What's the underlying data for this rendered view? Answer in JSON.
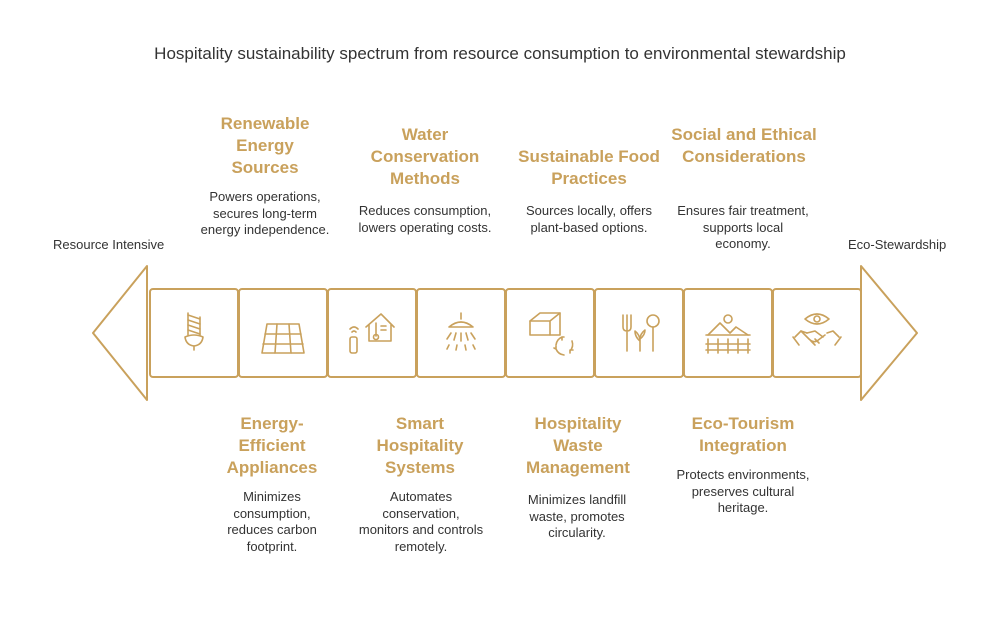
{
  "title": "Hospitality sustainability spectrum from resource consumption to environmental stewardship",
  "ends": {
    "left": "Resource Intensive",
    "right": "Eco-Stewardship"
  },
  "accent_color": "#C9A15C",
  "top_items": [
    {
      "heading": "Renewable Energy Sources",
      "description": "Powers operations, secures long-term energy independence.",
      "icon": "solar-panel-icon"
    },
    {
      "heading": "Water Conservation Methods",
      "description": "Reduces consumption, lowers operating costs.",
      "icon": "shower-icon"
    },
    {
      "heading": "Sustainable Food Practices",
      "description": "Sources locally, offers plant-based options.",
      "icon": "fork-leaf-icon"
    },
    {
      "heading": "Social and Ethical Considerations",
      "description": "Ensures fair treatment, supports local economy.",
      "icon": "handshake-eye-icon"
    }
  ],
  "bottom_items": [
    {
      "heading": "Energy-Efficient Appliances",
      "description": "Minimizes consumption, reduces carbon footprint.",
      "icon": "light-bulb-icon"
    },
    {
      "heading": "Smart Hospitality Systems",
      "description": "Automates conservation, monitors and controls remotely.",
      "icon": "smart-home-icon"
    },
    {
      "heading": "Hospitality Waste Management",
      "description": "Minimizes landfill waste, promotes circularity.",
      "icon": "recycle-box-icon"
    },
    {
      "heading": "Eco-Tourism Integration",
      "description": "Protects environments, preserves cultural heritage.",
      "icon": "landscape-fence-icon"
    }
  ]
}
